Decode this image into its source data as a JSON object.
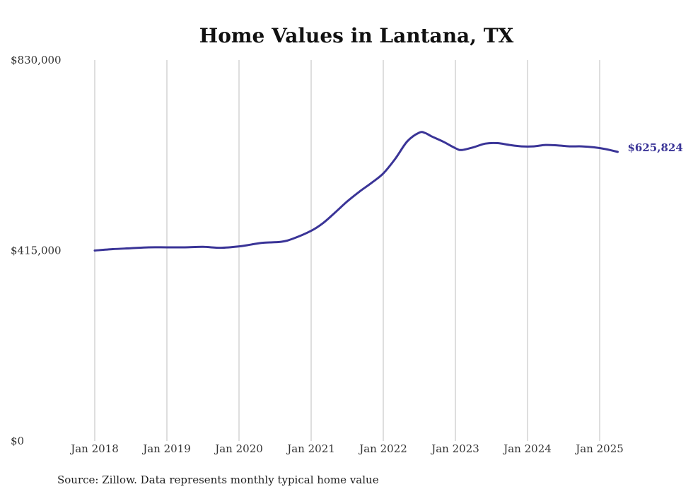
{
  "chart_data": {
    "type": "line",
    "title": "Home Values in Lantana, TX",
    "xlabel": "",
    "ylabel": "",
    "ylim": [
      0,
      830000
    ],
    "y_ticks": [
      {
        "value": 0,
        "label": "$0"
      },
      {
        "value": 415000,
        "label": "$415,000"
      },
      {
        "value": 830000,
        "label": "$830,000"
      }
    ],
    "x_ticks": [
      {
        "value": 2018,
        "label": "Jan 2018"
      },
      {
        "value": 2019,
        "label": "Jan 2019"
      },
      {
        "value": 2020,
        "label": "Jan 2020"
      },
      {
        "value": 2021,
        "label": "Jan 2021"
      },
      {
        "value": 2022,
        "label": "Jan 2022"
      },
      {
        "value": 2023,
        "label": "Jan 2023"
      },
      {
        "value": 2024,
        "label": "Jan 2024"
      },
      {
        "value": 2025,
        "label": "Jan 2025"
      }
    ],
    "grid": "vertical",
    "line_color": "#3a3497",
    "end_label": "$625,824",
    "series": [
      {
        "x": [
          "2018-01",
          "2018-04",
          "2018-07",
          "2018-10",
          "2019-01",
          "2019-04",
          "2019-07",
          "2019-10",
          "2020-01",
          "2020-03",
          "2020-05",
          "2020-08",
          "2020-10",
          "2021-01",
          "2021-03",
          "2021-05",
          "2021-07",
          "2021-09",
          "2021-11",
          "2022-01",
          "2022-03",
          "2022-05",
          "2022-07",
          "2022-08",
          "2022-09",
          "2022-11",
          "2023-01",
          "2023-02",
          "2023-04",
          "2023-06",
          "2023-08",
          "2023-10",
          "2023-12",
          "2024-02",
          "2024-04",
          "2024-06",
          "2024-08",
          "2024-10",
          "2024-12",
          "2025-02",
          "2025-04"
        ],
        "values": [
          415000,
          418000,
          420000,
          422000,
          422000,
          422000,
          423000,
          421000,
          424000,
          428000,
          432000,
          434000,
          441000,
          458000,
          475000,
          498000,
          522000,
          543000,
          562000,
          583000,
          615000,
          653000,
          672000,
          671000,
          664000,
          652000,
          638000,
          634000,
          640000,
          648000,
          649000,
          645000,
          642000,
          642000,
          645000,
          644000,
          642000,
          642000,
          640000,
          636000,
          630000
        ]
      }
    ]
  },
  "source": "Source: Zillow. Data represents monthly typical home value"
}
